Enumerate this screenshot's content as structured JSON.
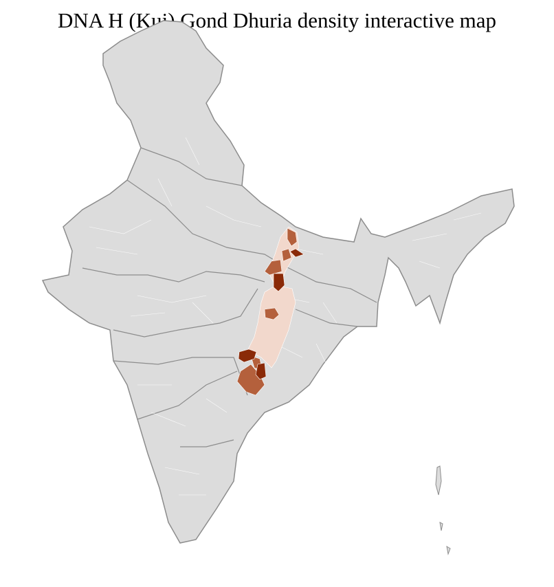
{
  "title": "DNA H (Kui) Gond Dhuria density interactive map",
  "colors": {
    "base": "#dcdcdc",
    "state_border": "#8c8c8c",
    "district_border": "#ffffff",
    "density_low": "#f2d8cc",
    "density_mid": "#b4603c",
    "density_high": "#8a2a08"
  }
}
